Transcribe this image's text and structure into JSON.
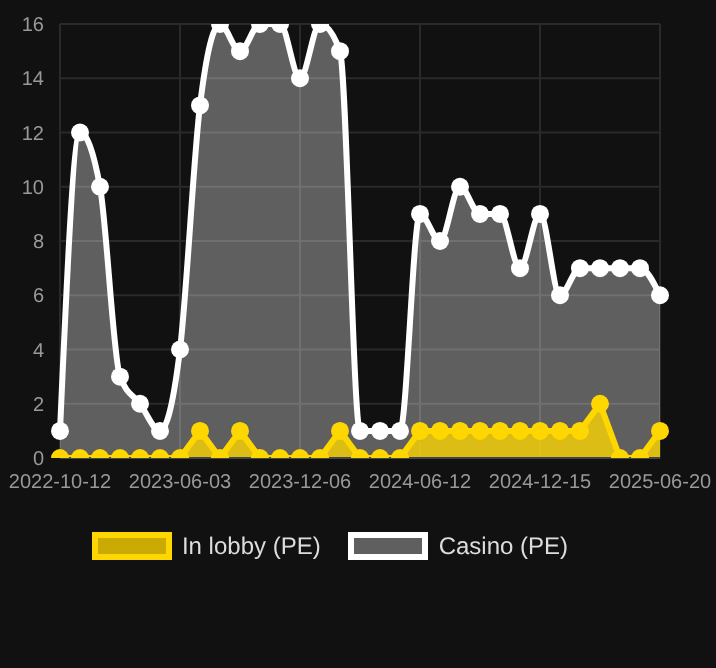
{
  "chart_data": {
    "type": "area",
    "categories": [
      "2022-10-12",
      null,
      null,
      null,
      null,
      null,
      "2023-06-03",
      null,
      null,
      null,
      null,
      null,
      "2023-12-06",
      null,
      null,
      null,
      null,
      null,
      "2024-06-12",
      null,
      null,
      null,
      null,
      null,
      "2024-12-15",
      null,
      null,
      null,
      null,
      null,
      "2025-06-20"
    ],
    "series": [
      {
        "name": "Casino (PE)",
        "color": "#ffffff",
        "values": [
          1,
          12,
          10,
          3,
          2,
          1,
          4,
          13,
          16,
          15,
          16,
          16,
          14,
          16,
          15,
          1,
          1,
          1,
          9,
          8,
          10,
          9,
          9,
          7,
          9,
          6,
          7,
          7,
          7,
          7,
          6
        ]
      },
      {
        "name": "In lobby (PE)",
        "color": "#ffd700",
        "values": [
          0,
          0,
          0,
          0,
          0,
          0,
          0,
          1,
          0,
          1,
          0,
          0,
          0,
          0,
          1,
          0,
          0,
          0,
          1,
          1,
          1,
          1,
          1,
          1,
          1,
          1,
          1,
          2,
          0,
          0,
          1
        ]
      }
    ],
    "ylim": [
      0,
      16
    ],
    "yticks": [
      0,
      2,
      4,
      6,
      8,
      10,
      12,
      14,
      16
    ],
    "grid": true,
    "legend": "bottom",
    "marker": "circle"
  }
}
